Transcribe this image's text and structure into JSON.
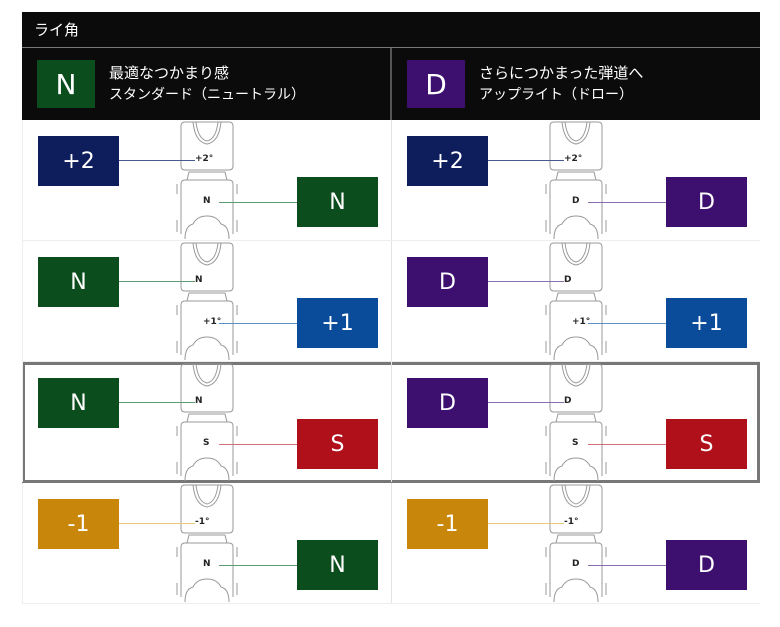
{
  "title": "ライ角",
  "colors": {
    "N": "#0b4d1c",
    "D": "#3d0f6e",
    "+2": "#0e1d5c",
    "+1": "#0a4c9a",
    "S": "#b0101a",
    "-1": "#c8870b"
  },
  "line_colors": {
    "N": "#5f9a72",
    "D": "#8a6fb0",
    "+2": "#4a5a90",
    "+1": "#5a92c8",
    "S": "#d07078",
    "-1": "#e6c87a"
  },
  "columns": [
    {
      "badge": "N",
      "line1": "最適なつかまり感",
      "line2": "スタンダード（ニュートラル）"
    },
    {
      "badge": "D",
      "line1": "さらにつかまった弾道へ",
      "line2": "アップライト（ドロー）"
    }
  ],
  "rows": [
    {
      "highlight": false,
      "cells": [
        {
          "top": "+2",
          "top_mark": "+2°",
          "bottom": "N",
          "bottom_mark": "N"
        },
        {
          "top": "+2",
          "top_mark": "+2°",
          "bottom": "D",
          "bottom_mark": "D"
        }
      ]
    },
    {
      "highlight": false,
      "cells": [
        {
          "top": "N",
          "top_mark": "N",
          "bottom": "+1",
          "bottom_mark": "+1°"
        },
        {
          "top": "D",
          "top_mark": "D",
          "bottom": "+1",
          "bottom_mark": "+1°"
        }
      ]
    },
    {
      "highlight": true,
      "cells": [
        {
          "top": "N",
          "top_mark": "N",
          "bottom": "S",
          "bottom_mark": "S"
        },
        {
          "top": "D",
          "top_mark": "D",
          "bottom": "S",
          "bottom_mark": "S"
        }
      ]
    },
    {
      "highlight": false,
      "cells": [
        {
          "top": "-1",
          "top_mark": "-1°",
          "bottom": "N",
          "bottom_mark": "N"
        },
        {
          "top": "-1",
          "top_mark": "-1°",
          "bottom": "D",
          "bottom_mark": "D"
        }
      ]
    }
  ]
}
